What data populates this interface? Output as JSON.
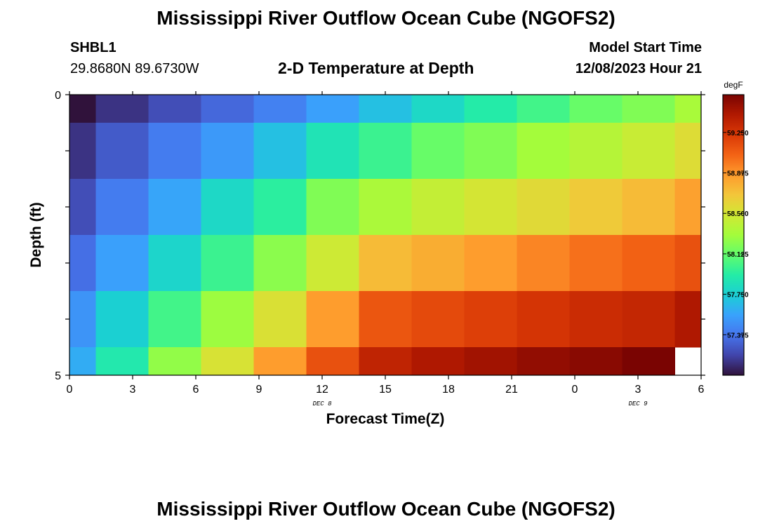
{
  "header": {
    "title": "Mississippi River Outflow Ocean Cube (NGOFS2)",
    "station": "SHBL1",
    "coords": "29.8680N  89.6730W",
    "subtitle": "2-D Temperature at Depth",
    "model_start_label": "Model Start Time",
    "model_start_value": "12/08/2023 Hour 21"
  },
  "footer": {
    "title": "Mississippi River Outflow Ocean Cube (NGOFS2)"
  },
  "chart_data": {
    "type": "heatmap",
    "title": "2-D Temperature at Depth",
    "xlabel": "Forecast Time(Z)",
    "ylabel": "Depth (ft)",
    "x_tick_labels": [
      "0",
      "3",
      "6",
      "9",
      "12",
      "15",
      "18",
      "21",
      "0",
      "3",
      "6"
    ],
    "x_hours": [
      0,
      3,
      6,
      9,
      12,
      15,
      18,
      21,
      24,
      27,
      30
    ],
    "xlim": [
      0,
      30
    ],
    "date_labels": [
      {
        "text": "DEC 8",
        "hour": 12
      },
      {
        "text": "DEC 9",
        "hour": 27
      }
    ],
    "y_tick_labels": [
      "0",
      "5"
    ],
    "ylim": [
      0,
      5
    ],
    "colorbar": {
      "unit": "degF",
      "range": [
        57.0,
        59.6
      ],
      "ticks": [
        "57.375",
        "57.750",
        "58.125",
        "58.500",
        "58.875",
        "59.250"
      ],
      "colors": [
        "#30123b",
        "#4145ab",
        "#4675ed",
        "#39a2fc",
        "#1bcfd4",
        "#24eca6",
        "#61fc6c",
        "#a4fc3b",
        "#d1e834",
        "#f3c63a",
        "#fe9b2d",
        "#f36315",
        "#d93806",
        "#b11901",
        "#7a0402"
      ]
    },
    "time_bins_hours": [
      0,
      1.25,
      3.75,
      6.25,
      8.75,
      11.25,
      13.75,
      16.25,
      18.75,
      21.25,
      23.75,
      26.25,
      28.75,
      30
    ],
    "depth_bins_ft": [
      0,
      0.5,
      1.5,
      2.5,
      3.5,
      4.5,
      5
    ],
    "values_degF": [
      [
        57.0,
        57.12,
        57.22,
        57.32,
        57.42,
        57.55,
        57.68,
        57.8,
        57.92,
        58.02,
        58.13,
        58.2,
        58.32
      ],
      [
        57.12,
        57.27,
        57.4,
        57.52,
        57.68,
        57.87,
        58.0,
        58.13,
        58.2,
        58.3,
        58.37,
        58.45,
        58.55
      ],
      [
        57.22,
        57.4,
        57.57,
        57.8,
        57.95,
        58.2,
        58.33,
        58.43,
        58.5,
        58.57,
        58.65,
        58.72,
        58.83
      ],
      [
        57.35,
        57.55,
        57.78,
        58.0,
        58.23,
        58.47,
        58.72,
        58.78,
        58.85,
        58.93,
        59.0,
        59.05,
        59.12
      ],
      [
        57.5,
        57.75,
        58.02,
        58.28,
        58.53,
        58.85,
        59.1,
        59.15,
        59.2,
        59.25,
        59.3,
        59.33,
        59.42
      ],
      [
        57.6,
        57.9,
        58.25,
        58.52,
        58.85,
        59.12,
        59.35,
        59.42,
        59.47,
        59.52,
        59.55,
        59.6,
        null
      ]
    ]
  }
}
